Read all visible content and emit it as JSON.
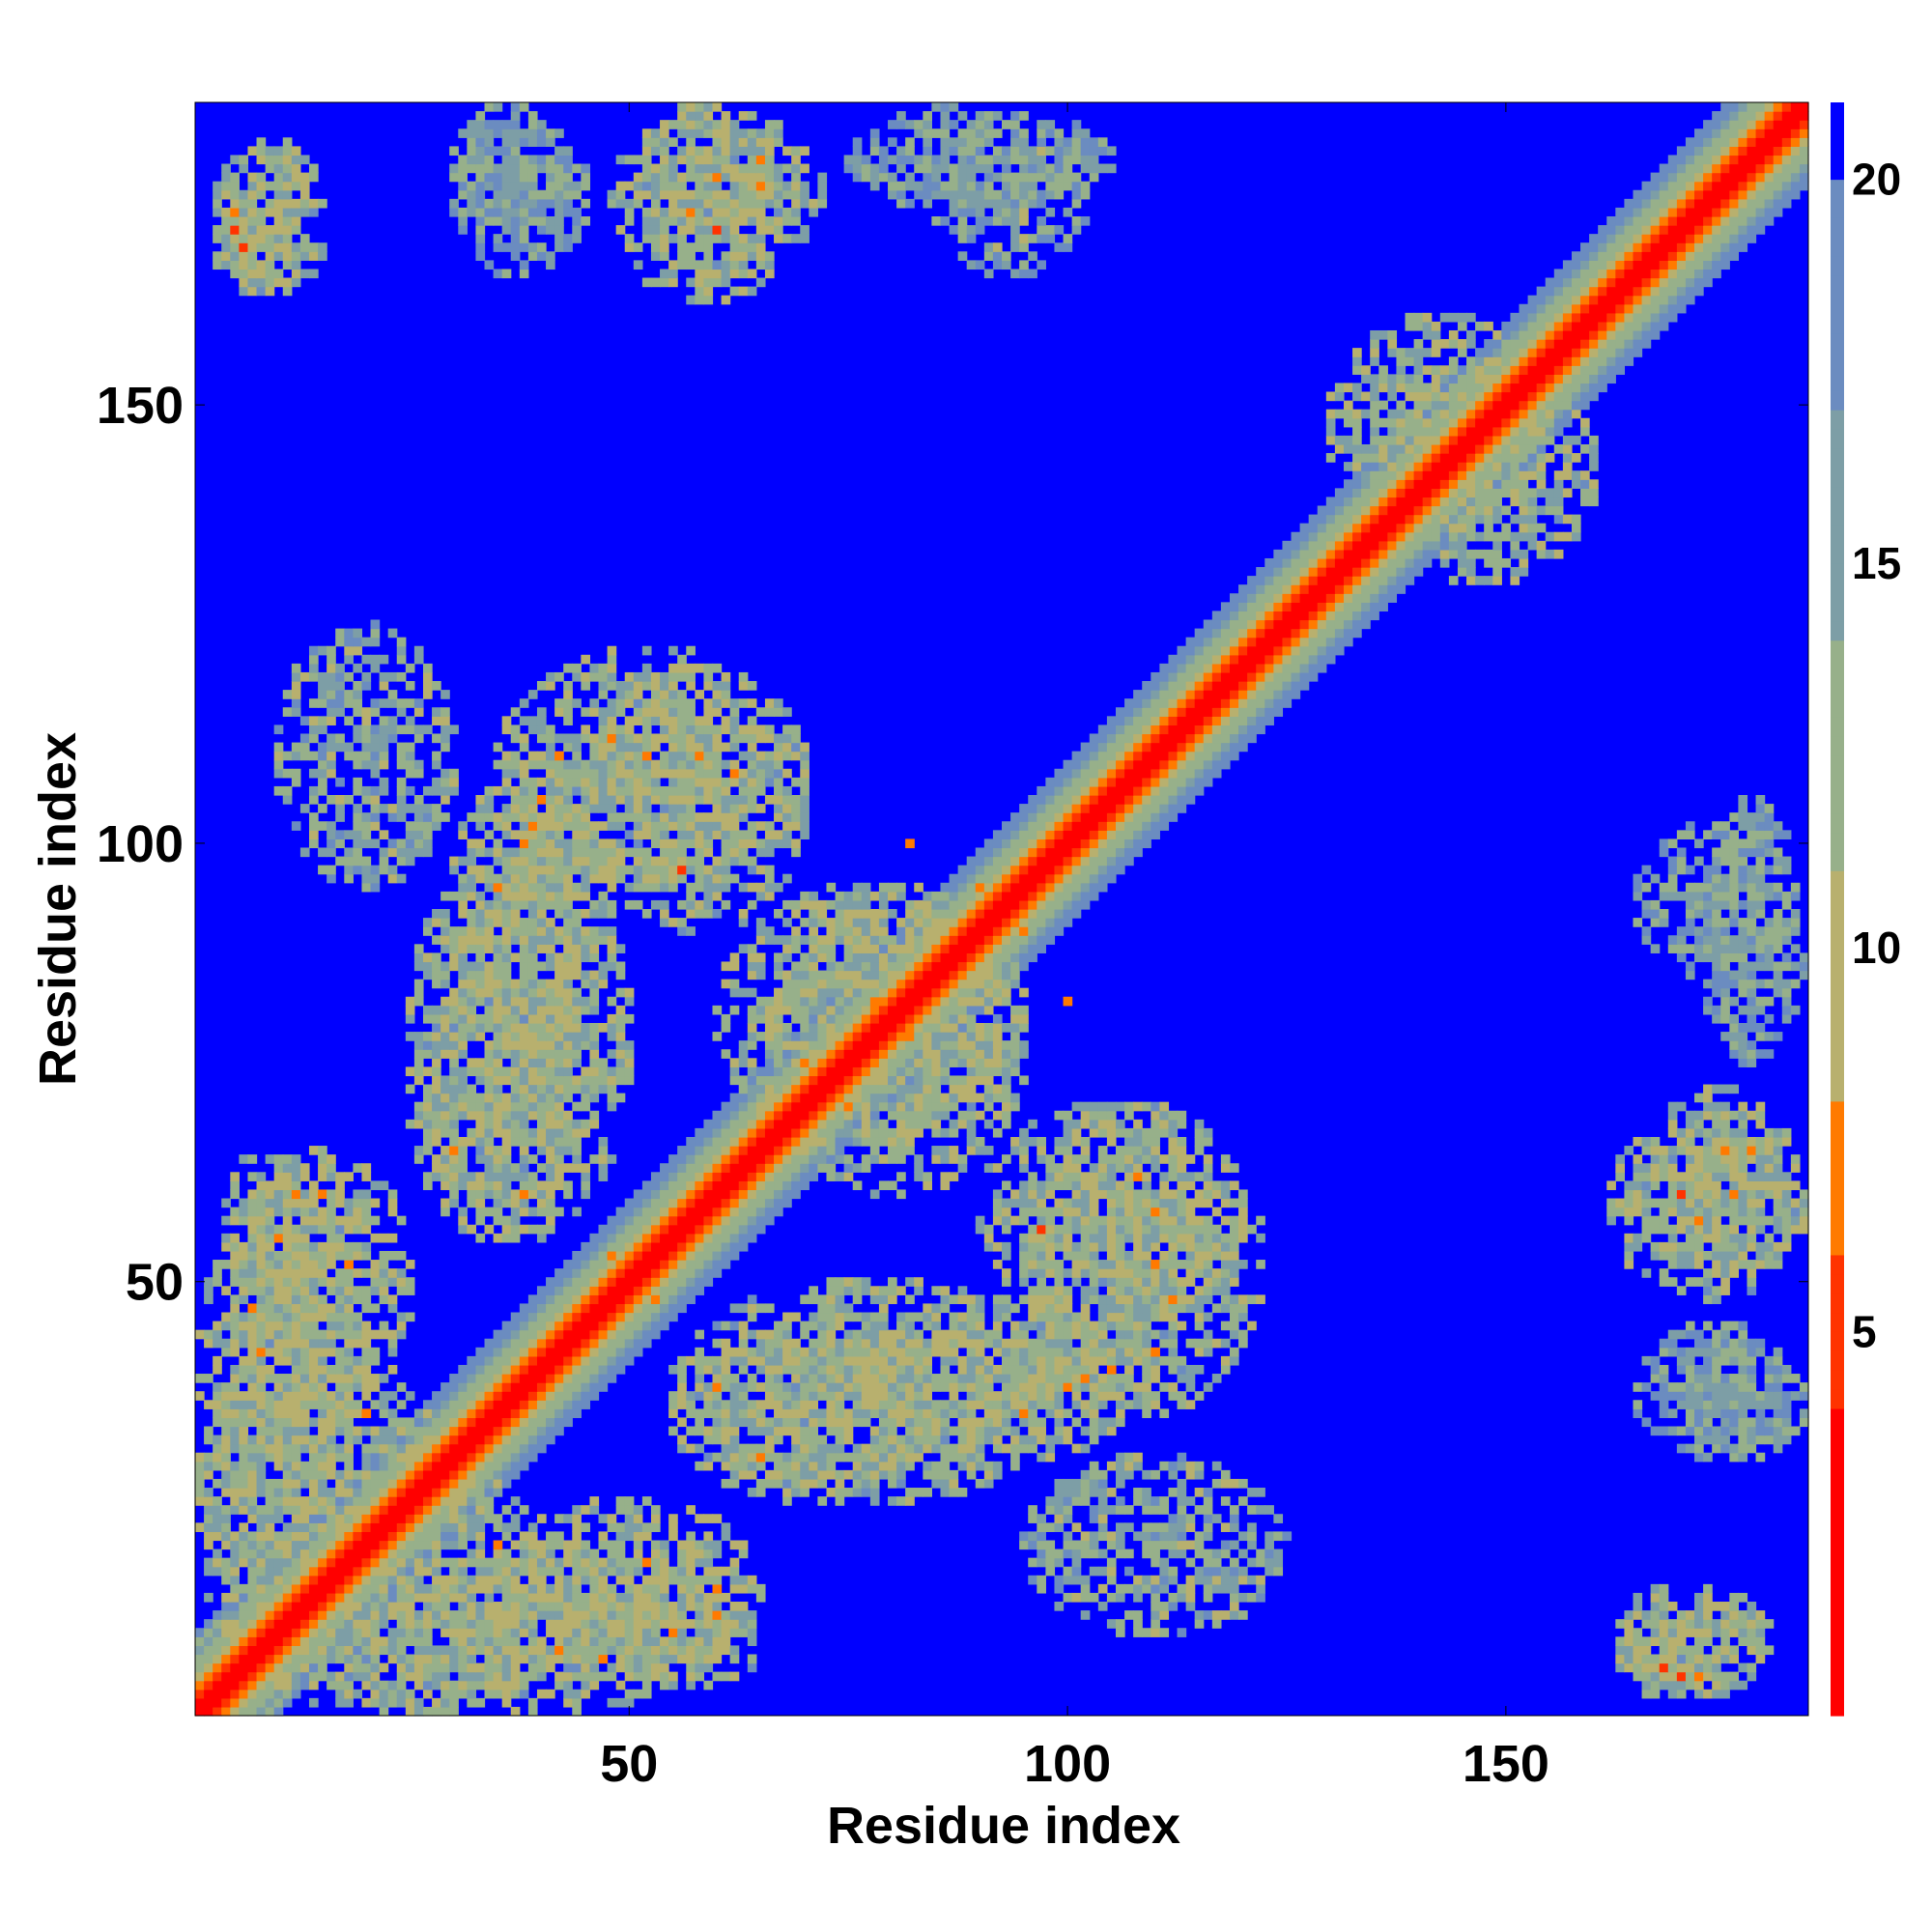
{
  "chart_data": {
    "type": "heatmap",
    "title": "",
    "xlabel": "Residue index",
    "ylabel": "Residue index",
    "xlim": [
      1,
      184
    ],
    "ylim": [
      1,
      184
    ],
    "x_ticks": [
      50,
      100,
      150
    ],
    "y_ticks": [
      50,
      100,
      150
    ],
    "x_tick_labels": [
      "50",
      "100",
      "150"
    ],
    "y_tick_labels": [
      "50",
      "100",
      "150"
    ],
    "colorbar": {
      "range": [
        0,
        21
      ],
      "ticks": [
        5,
        10,
        15,
        20
      ],
      "tick_labels": [
        "5",
        "10",
        "15",
        "20"
      ],
      "stops": [
        {
          "value": 0,
          "color": "#ff0000"
        },
        {
          "value": 4,
          "color": "#ff3300"
        },
        {
          "value": 6,
          "color": "#ff7a00"
        },
        {
          "value": 8,
          "color": "#ffaa00"
        },
        {
          "value": 8.01,
          "color": "#b8b06e"
        },
        {
          "value": 11,
          "color": "#97b08a"
        },
        {
          "value": 14,
          "color": "#7d9ea6"
        },
        {
          "value": 17,
          "color": "#6b8cc0"
        },
        {
          "value": 20,
          "color": "#5e82cc"
        },
        {
          "value": 20.01,
          "color": "#0000ff"
        },
        {
          "value": 21,
          "color": "#0000ff"
        }
      ]
    },
    "background_value": 21,
    "diagonal_profile": [
      {
        "offset": 0,
        "value": 0.5
      },
      {
        "offset": 1,
        "value": 3.2
      },
      {
        "offset": 2,
        "value": 5.2
      },
      {
        "offset": 3,
        "value": 6.8
      },
      {
        "offset": 4,
        "value": 9.2
      },
      {
        "offset": 5,
        "value": 11.5
      },
      {
        "offset": 6,
        "value": 13.5
      },
      {
        "offset": 7,
        "value": 15.5
      },
      {
        "offset": 8,
        "value": 17.5
      },
      {
        "offset": 9,
        "value": 19
      }
    ],
    "contact_regions": [
      {
        "x": [
          1,
          15
        ],
        "y": [
          1,
          65
        ],
        "value": 13
      },
      {
        "x": [
          15,
          40
        ],
        "y": [
          1,
          30
        ],
        "value": 13
      },
      {
        "x": [
          28,
          65
        ],
        "y": [
          5,
          20
        ],
        "value": 13
      },
      {
        "x": [
          5,
          25
        ],
        "y": [
          35,
          65
        ],
        "value": 12
      },
      {
        "x": [
          25,
          50
        ],
        "y": [
          55,
          100
        ],
        "value": 13
      },
      {
        "x": [
          35,
          70
        ],
        "y": [
          95,
          122
        ],
        "value": 13
      },
      {
        "x": [
          60,
          95
        ],
        "y": [
          65,
          95
        ],
        "value": 13
      },
      {
        "x": [
          90,
          120
        ],
        "y": [
          45,
          70
        ],
        "value": 13
      },
      {
        "x": [
          75,
          110
        ],
        "y": [
          30,
          48
        ],
        "value": 13
      },
      {
        "x": [
          55,
          85
        ],
        "y": [
          25,
          45
        ],
        "value": 13
      },
      {
        "x": [
          95,
          125
        ],
        "y": [
          10,
          30
        ],
        "value": 14
      },
      {
        "x": [
          3,
          15
        ],
        "y": [
          165,
          180
        ],
        "value": 13
      },
      {
        "x": [
          48,
          70
        ],
        "y": [
          162,
          184
        ],
        "value": 13
      },
      {
        "x": [
          30,
          42
        ],
        "y": [
          170,
          184
        ],
        "value": 16
      },
      {
        "x": [
          75,
          105
        ],
        "y": [
          172,
          184
        ],
        "value": 16
      },
      {
        "x": [
          165,
          183
        ],
        "y": [
          50,
          72
        ],
        "value": 13
      },
      {
        "x": [
          165,
          183
        ],
        "y": [
          85,
          102
        ],
        "value": 15
      },
      {
        "x": [
          165,
          183
        ],
        "y": [
          30,
          45
        ],
        "value": 16
      },
      {
        "x": [
          163,
          175
        ],
        "y": [
          2,
          15
        ],
        "value": 13
      },
      {
        "x": [
          130,
          155
        ],
        "y": [
          135,
          160
        ],
        "value": 13
      }
    ],
    "hotspots": [
      {
        "x": 5,
        "y": 170,
        "value": 5
      },
      {
        "x": 6,
        "y": 168,
        "value": 6
      },
      {
        "x": 60,
        "y": 176,
        "value": 6
      },
      {
        "x": 65,
        "y": 178,
        "value": 7
      },
      {
        "x": 57,
        "y": 172,
        "value": 7
      },
      {
        "x": 42,
        "y": 110,
        "value": 6
      },
      {
        "x": 39,
        "y": 102,
        "value": 7
      },
      {
        "x": 35,
        "y": 95,
        "value": 6
      },
      {
        "x": 52,
        "y": 110,
        "value": 7
      },
      {
        "x": 56,
        "y": 97,
        "value": 5
      },
      {
        "x": 12,
        "y": 60,
        "value": 6
      },
      {
        "x": 18,
        "y": 52,
        "value": 6
      },
      {
        "x": 30,
        "y": 65,
        "value": 7
      },
      {
        "x": 38,
        "y": 60,
        "value": 7
      },
      {
        "x": 48,
        "y": 53,
        "value": 6
      },
      {
        "x": 95,
        "y": 90,
        "value": 6
      },
      {
        "x": 100,
        "y": 82,
        "value": 7
      },
      {
        "x": 108,
        "y": 62,
        "value": 6
      },
      {
        "x": 110,
        "y": 58,
        "value": 7
      },
      {
        "x": 112,
        "y": 48,
        "value": 6
      },
      {
        "x": 105,
        "y": 40,
        "value": 7
      },
      {
        "x": 100,
        "y": 38,
        "value": 6
      },
      {
        "x": 95,
        "y": 35,
        "value": 7
      },
      {
        "x": 65,
        "y": 30,
        "value": 6
      },
      {
        "x": 60,
        "y": 15,
        "value": 7
      },
      {
        "x": 55,
        "y": 10,
        "value": 6
      },
      {
        "x": 47,
        "y": 7,
        "value": 6
      },
      {
        "x": 42,
        "y": 8,
        "value": 7
      },
      {
        "x": 20,
        "y": 35,
        "value": 7
      },
      {
        "x": 25,
        "y": 28,
        "value": 6
      },
      {
        "x": 70,
        "y": 75,
        "value": 6
      },
      {
        "x": 74,
        "y": 72,
        "value": 7
      },
      {
        "x": 78,
        "y": 82,
        "value": 6
      },
      {
        "x": 170,
        "y": 60,
        "value": 5
      },
      {
        "x": 175,
        "y": 65,
        "value": 6
      },
      {
        "x": 168,
        "y": 6,
        "value": 5
      },
      {
        "x": 172,
        "y": 5,
        "value": 6
      },
      {
        "x": 145,
        "y": 145,
        "value": 7
      },
      {
        "x": 140,
        "y": 140,
        "value": 7
      }
    ]
  }
}
